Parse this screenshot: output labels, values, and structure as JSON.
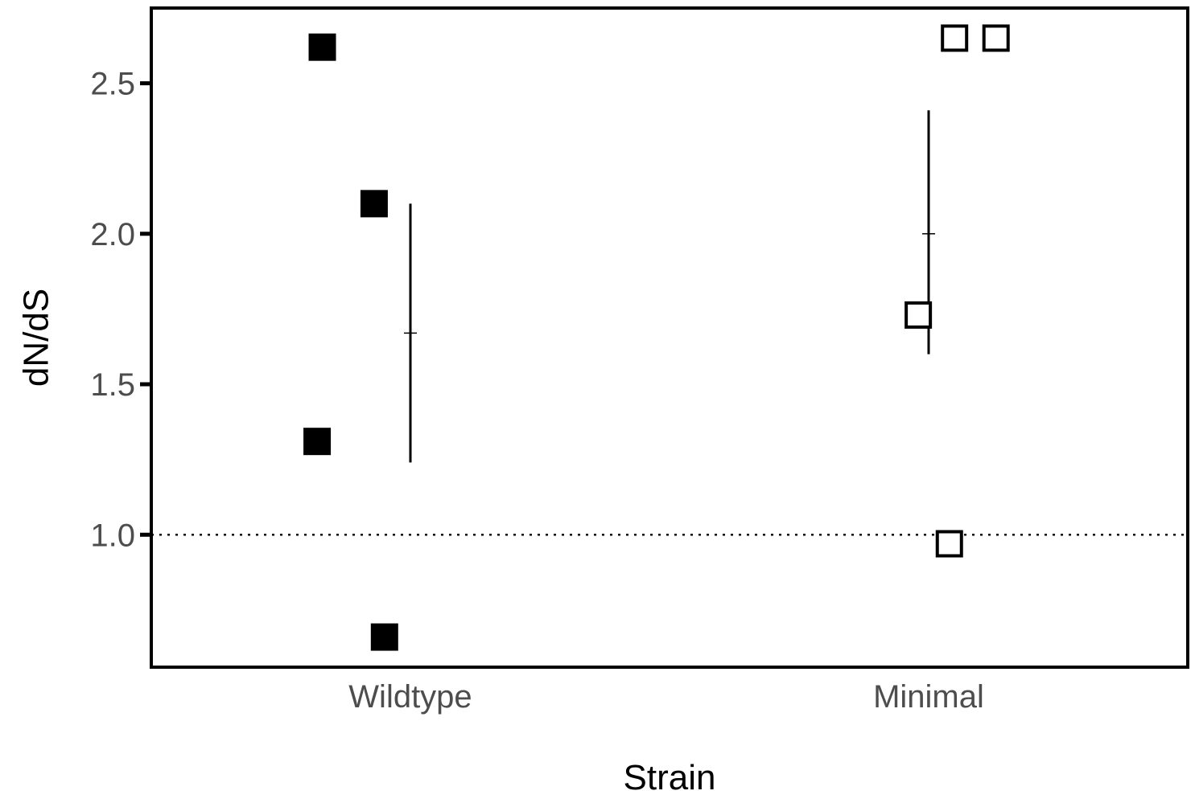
{
  "chart_data": {
    "type": "scatter",
    "xlabel": "Strain",
    "ylabel": "dN/dS",
    "categories": [
      "Wildtype",
      "Minimal"
    ],
    "ylim": [
      0.56,
      2.75
    ],
    "yticks": [
      1.0,
      1.5,
      2.0,
      2.5
    ],
    "ytick_labels": [
      "1.0",
      "1.5",
      "2.0",
      "2.5"
    ],
    "reference_line": {
      "y": 1.0,
      "style": "dotted"
    },
    "grid": false,
    "legend": "none",
    "series": [
      {
        "category": "Wildtype",
        "marker": "filled-square",
        "color": "#000000",
        "points": [
          {
            "jitter": -0.17,
            "y": 2.62
          },
          {
            "jitter": -0.07,
            "y": 2.1
          },
          {
            "jitter": -0.18,
            "y": 1.31
          },
          {
            "jitter": -0.05,
            "y": 0.66
          }
        ],
        "summary": {
          "mean": 1.67,
          "lower": 1.24,
          "upper": 2.1
        }
      },
      {
        "category": "Minimal",
        "marker": "open-square",
        "color": "#000000",
        "points": [
          {
            "jitter": 0.05,
            "y": 2.65
          },
          {
            "jitter": 0.13,
            "y": 2.65
          },
          {
            "jitter": -0.02,
            "y": 1.73
          },
          {
            "jitter": 0.04,
            "y": 0.97
          }
        ],
        "summary": {
          "mean": 2.0,
          "lower": 1.6,
          "upper": 2.41
        }
      }
    ]
  }
}
